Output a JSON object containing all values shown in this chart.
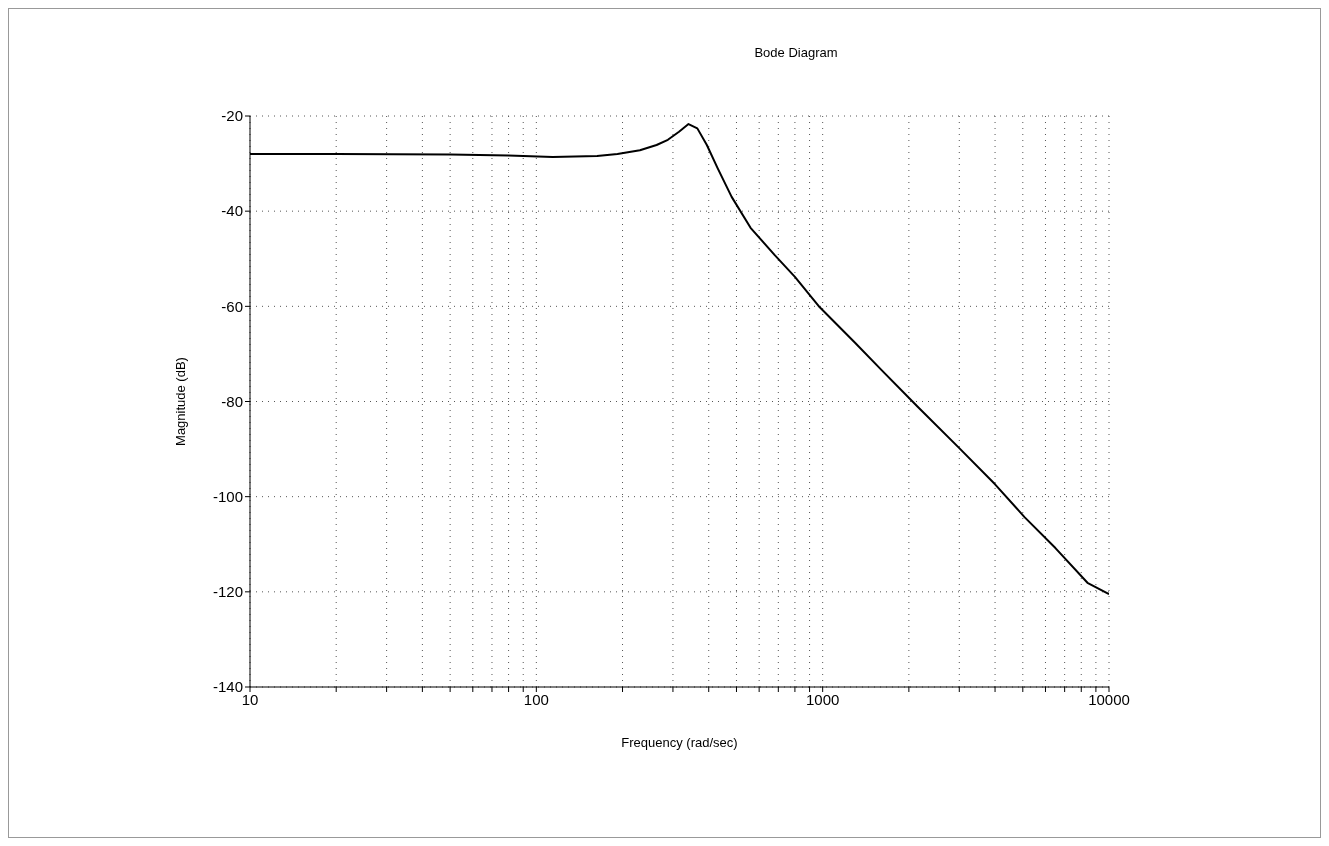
{
  "chart_data": {
    "type": "line",
    "title": "Bode Diagram",
    "xlabel": "Frequency  (rad/sec)",
    "ylabel": "Magnitude (dB)",
    "x": [
      10,
      20,
      50,
      80,
      114,
      163,
      192,
      230,
      263,
      288,
      315,
      340,
      365,
      394,
      430,
      481,
      560,
      679,
      800,
      977,
      1300,
      1600,
      2147,
      3000,
      4000,
      5070,
      6500,
      8410,
      10000
    ],
    "values": [
      -28.0,
      -28.0,
      -28.1,
      -28.3,
      -28.6,
      -28.4,
      -28.0,
      -27.2,
      -26.1,
      -25.0,
      -23.3,
      -21.7,
      -22.6,
      -26.1,
      -31.0,
      -37.0,
      -43.5,
      -49.2,
      -53.8,
      -60.2,
      -67.7,
      -73.3,
      -81.1,
      -89.8,
      -97.4,
      -104.3,
      -110.8,
      -118.1,
      -120.5
    ],
    "color": "#000000",
    "log": "x",
    "xlim": [
      10,
      10000
    ],
    "xticks": [
      10,
      {
        "value": 20,
        "label": null
      },
      {
        "value": 30,
        "label": null
      },
      {
        "value": 40,
        "label": null
      },
      {
        "value": 50,
        "label": null
      },
      {
        "value": 60,
        "label": null
      },
      {
        "value": 70,
        "label": null
      },
      {
        "value": 80,
        "label": null
      },
      {
        "value": 90,
        "label": null
      },
      100,
      {
        "value": 200,
        "label": null
      },
      {
        "value": 300,
        "label": null
      },
      {
        "value": 400,
        "label": null
      },
      {
        "value": 500,
        "label": null
      },
      {
        "value": 600,
        "label": null
      },
      {
        "value": 700,
        "label": null
      },
      {
        "value": 800,
        "label": null
      },
      {
        "value": 900,
        "label": null
      },
      1000,
      {
        "value": 2000,
        "label": null
      },
      {
        "value": 3000,
        "label": null
      },
      {
        "value": 4000,
        "label": null
      },
      {
        "value": 5000,
        "label": null
      },
      {
        "value": 6000,
        "label": null
      },
      {
        "value": 7000,
        "label": null
      },
      {
        "value": 8000,
        "label": null
      },
      {
        "value": 9000,
        "label": null
      },
      10000
    ],
    "ylim": [
      -140,
      -20
    ],
    "yticks": [
      -140,
      -120,
      -100,
      -80,
      -60,
      -40,
      -20
    ],
    "grid": true,
    "marker": "none",
    "line_style": "solid"
  }
}
